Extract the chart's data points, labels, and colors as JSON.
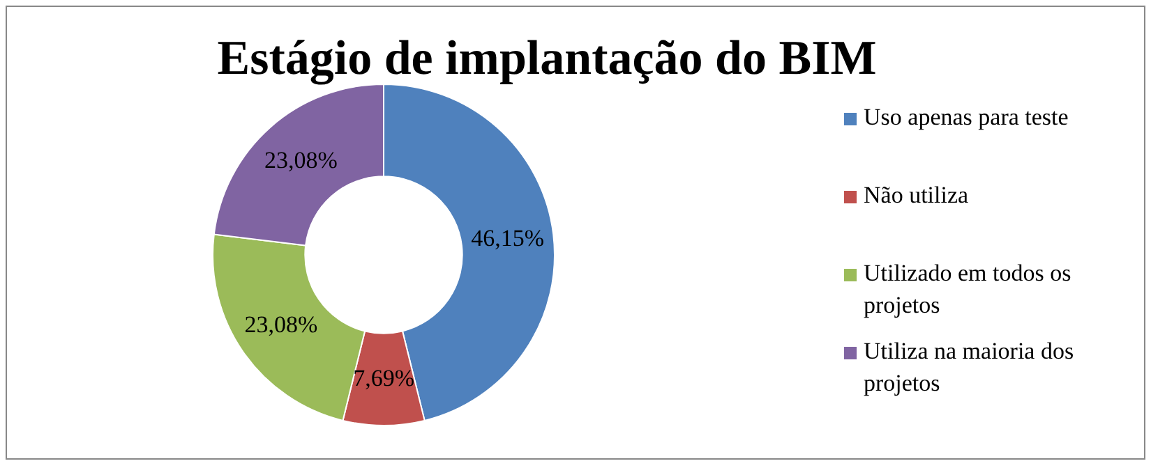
{
  "chart_data": {
    "type": "donut",
    "title": "Estágio de implantação do BIM",
    "categories": [
      "Uso apenas para teste",
      "Não utiliza",
      "Utilizado em todos os projetos",
      "Utiliza na maioria dos projetos"
    ],
    "values": [
      46.15,
      7.69,
      23.08,
      23.08
    ],
    "colors": [
      "#4f81bd",
      "#c0504d",
      "#9bbb59",
      "#8064a2"
    ],
    "value_labels": [
      "46,15%",
      "7,69%",
      "23,08%",
      "23,08%"
    ],
    "legend": "right"
  }
}
